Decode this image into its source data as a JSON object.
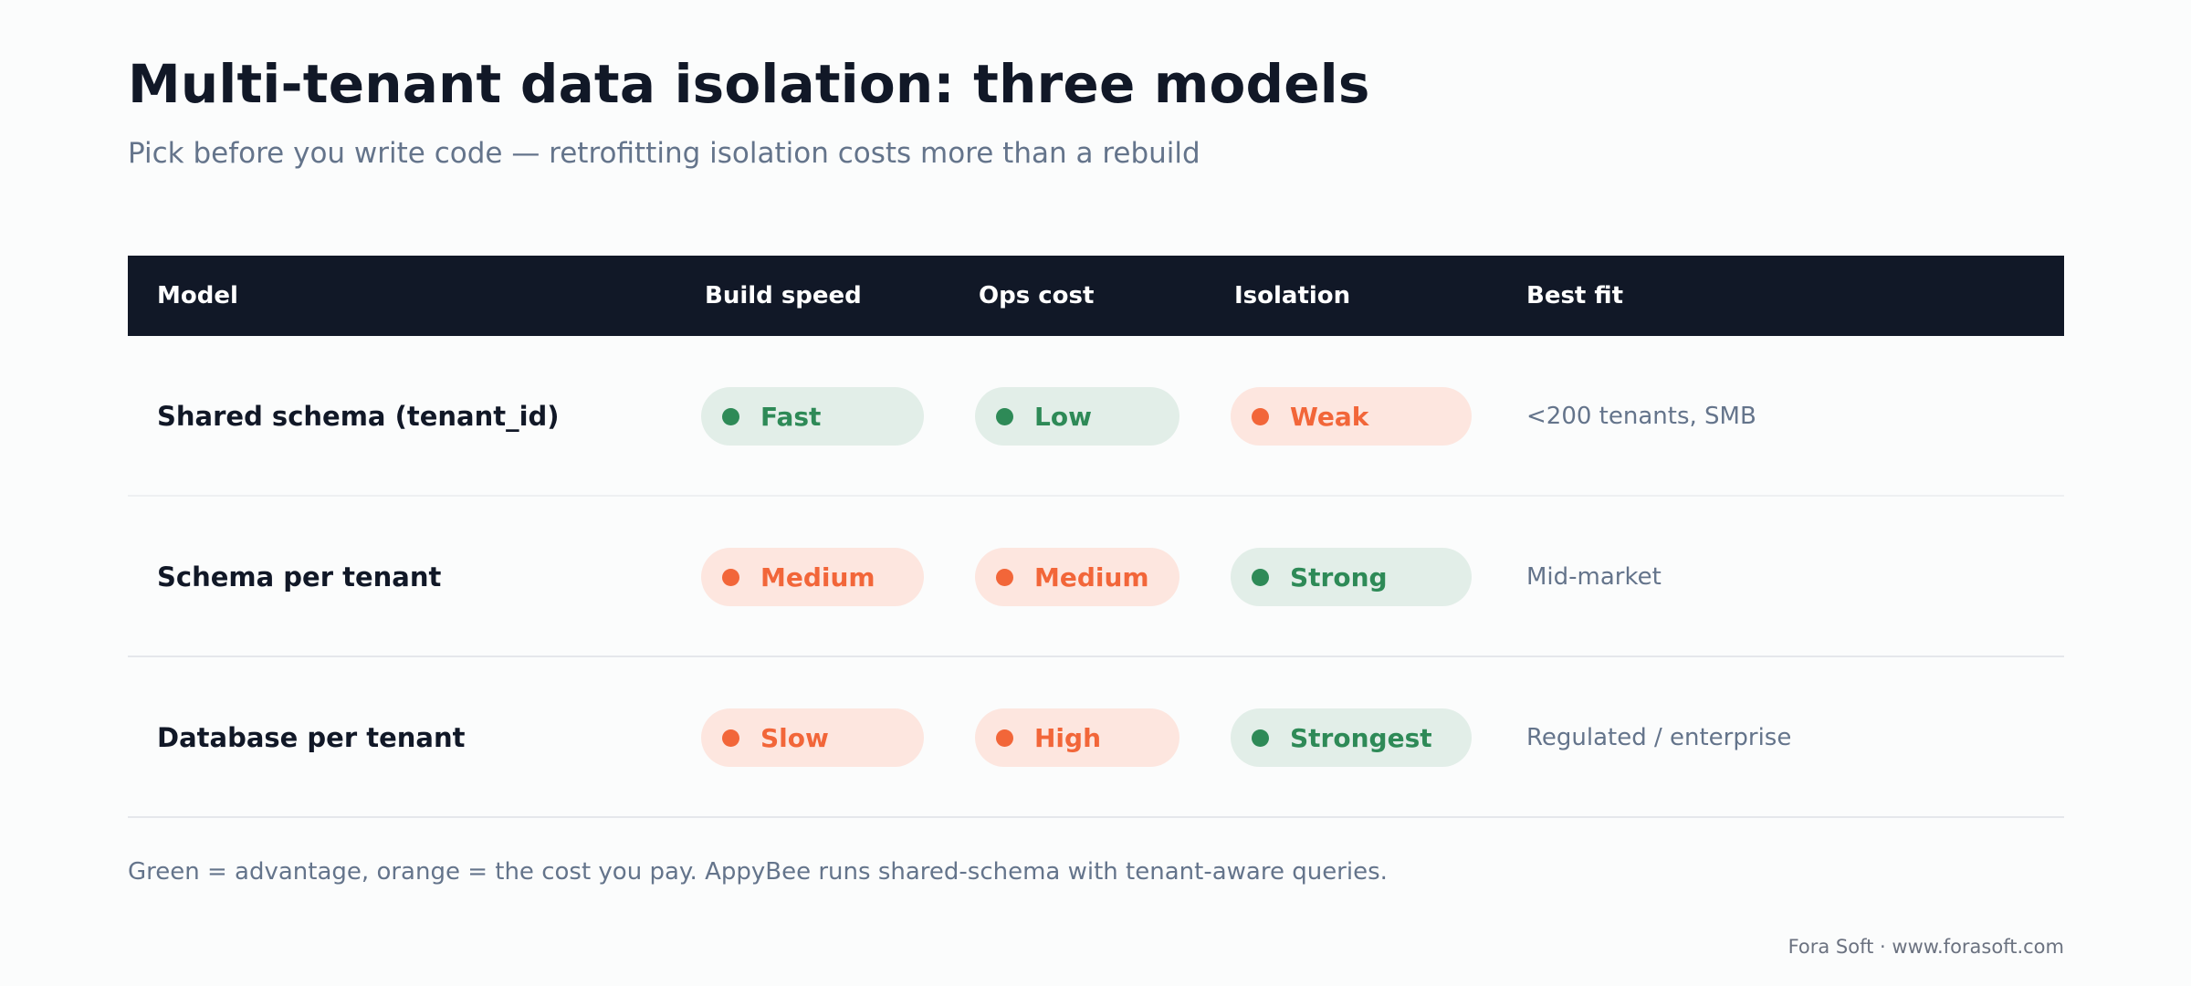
{
  "title": "Multi-tenant data isolation: three models",
  "subtitle": "Pick before you write code — retrofitting isolation costs more than a rebuild",
  "table": {
    "headers": {
      "model": "Model",
      "build_speed": "Build speed",
      "ops_cost": "Ops cost",
      "isolation": "Isolation",
      "best_fit": "Best fit"
    },
    "rows": [
      {
        "model": "Shared schema (tenant_id)",
        "build_speed": {
          "label": "Fast",
          "status": "advantage"
        },
        "ops_cost": {
          "label": "Low",
          "status": "advantage"
        },
        "isolation": {
          "label": "Weak",
          "status": "cost"
        },
        "best_fit": "<200 tenants, SMB"
      },
      {
        "model": "Schema per tenant",
        "build_speed": {
          "label": "Medium",
          "status": "cost"
        },
        "ops_cost": {
          "label": "Medium",
          "status": "cost"
        },
        "isolation": {
          "label": "Strong",
          "status": "advantage"
        },
        "best_fit": "Mid-market"
      },
      {
        "model": "Database per tenant",
        "build_speed": {
          "label": "Slow",
          "status": "cost"
        },
        "ops_cost": {
          "label": "High",
          "status": "cost"
        },
        "isolation": {
          "label": "Strongest",
          "status": "advantage"
        },
        "best_fit": "Regulated / enterprise"
      }
    ]
  },
  "colors": {
    "header_bg": "#111827",
    "advantage": "#2e8a57",
    "advantage_bg": "#e2eee8",
    "cost": "#f26639",
    "cost_bg": "#fde6df"
  },
  "footnote": "Green = advantage, orange = the cost you pay. AppyBee runs shared-schema with tenant-aware queries.",
  "credit": "Fora Soft · www.forasoft.com"
}
